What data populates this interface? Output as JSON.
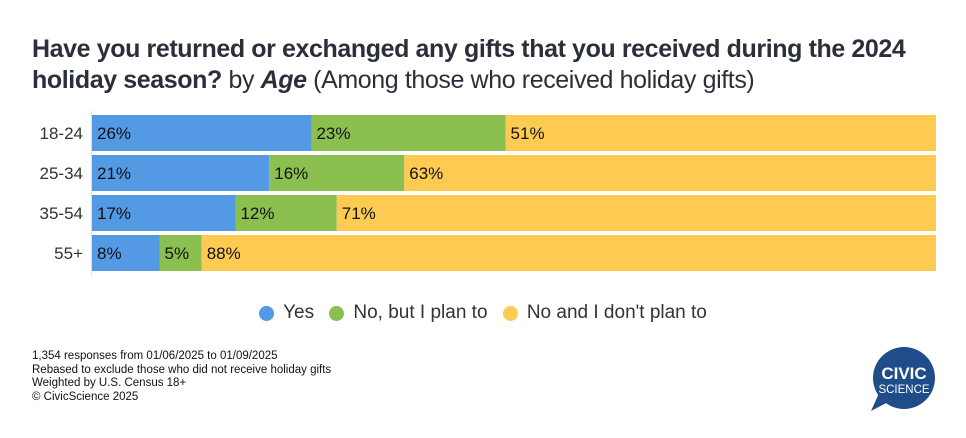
{
  "title": {
    "bold": "Have you returned or exchanged any gifts that you received during the 2024 holiday season?",
    "by": "by",
    "dimension": "Age",
    "note": "(Among those who received holiday gifts)"
  },
  "colors": {
    "yes": "#5499e3",
    "plan": "#8bbf4f",
    "noplan": "#fdcb52"
  },
  "chart_data": {
    "type": "bar",
    "orientation": "horizontal",
    "stacked": true,
    "normalized": "100%",
    "categories": [
      "18-24",
      "25-34",
      "35-54",
      "55+"
    ],
    "series": [
      {
        "name": "Yes",
        "values": [
          26,
          21,
          17,
          8
        ],
        "labels": [
          "26%",
          "21%",
          "17%",
          "8%"
        ],
        "color": "#5499e3"
      },
      {
        "name": "No, but I plan to",
        "values": [
          23,
          16,
          12,
          5
        ],
        "labels": [
          "23%",
          "16%",
          "12%",
          "5%"
        ],
        "color": "#8bbf4f"
      },
      {
        "name": "No and I don't plan to",
        "values": [
          51,
          63,
          71,
          88
        ],
        "labels": [
          "51%",
          "63%",
          "71%",
          "88%"
        ],
        "color": "#fdcb52"
      }
    ],
    "title": "Have you returned or exchanged any gifts that you received during the 2024 holiday season? by Age (Among those who received holiday gifts)",
    "xlabel": "",
    "ylabel": "",
    "xlim": [
      0,
      100
    ],
    "grid": false,
    "legend_position": "bottom"
  },
  "legend": [
    {
      "label": "Yes",
      "key": "yes"
    },
    {
      "label": "No, but I plan to",
      "key": "plan"
    },
    {
      "label": "No and I don't plan to",
      "key": "noplan"
    }
  ],
  "notes": [
    "1,354 responses from 01/06/2025 to 01/09/2025",
    "Rebased to exclude those who did not receive holiday gifts",
    "Weighted by U.S. Census 18+",
    "© CivicScience 2025"
  ],
  "logo": {
    "line1": "CIVIC",
    "line2": "SCIENCE",
    "color": "#1e4d8a"
  }
}
